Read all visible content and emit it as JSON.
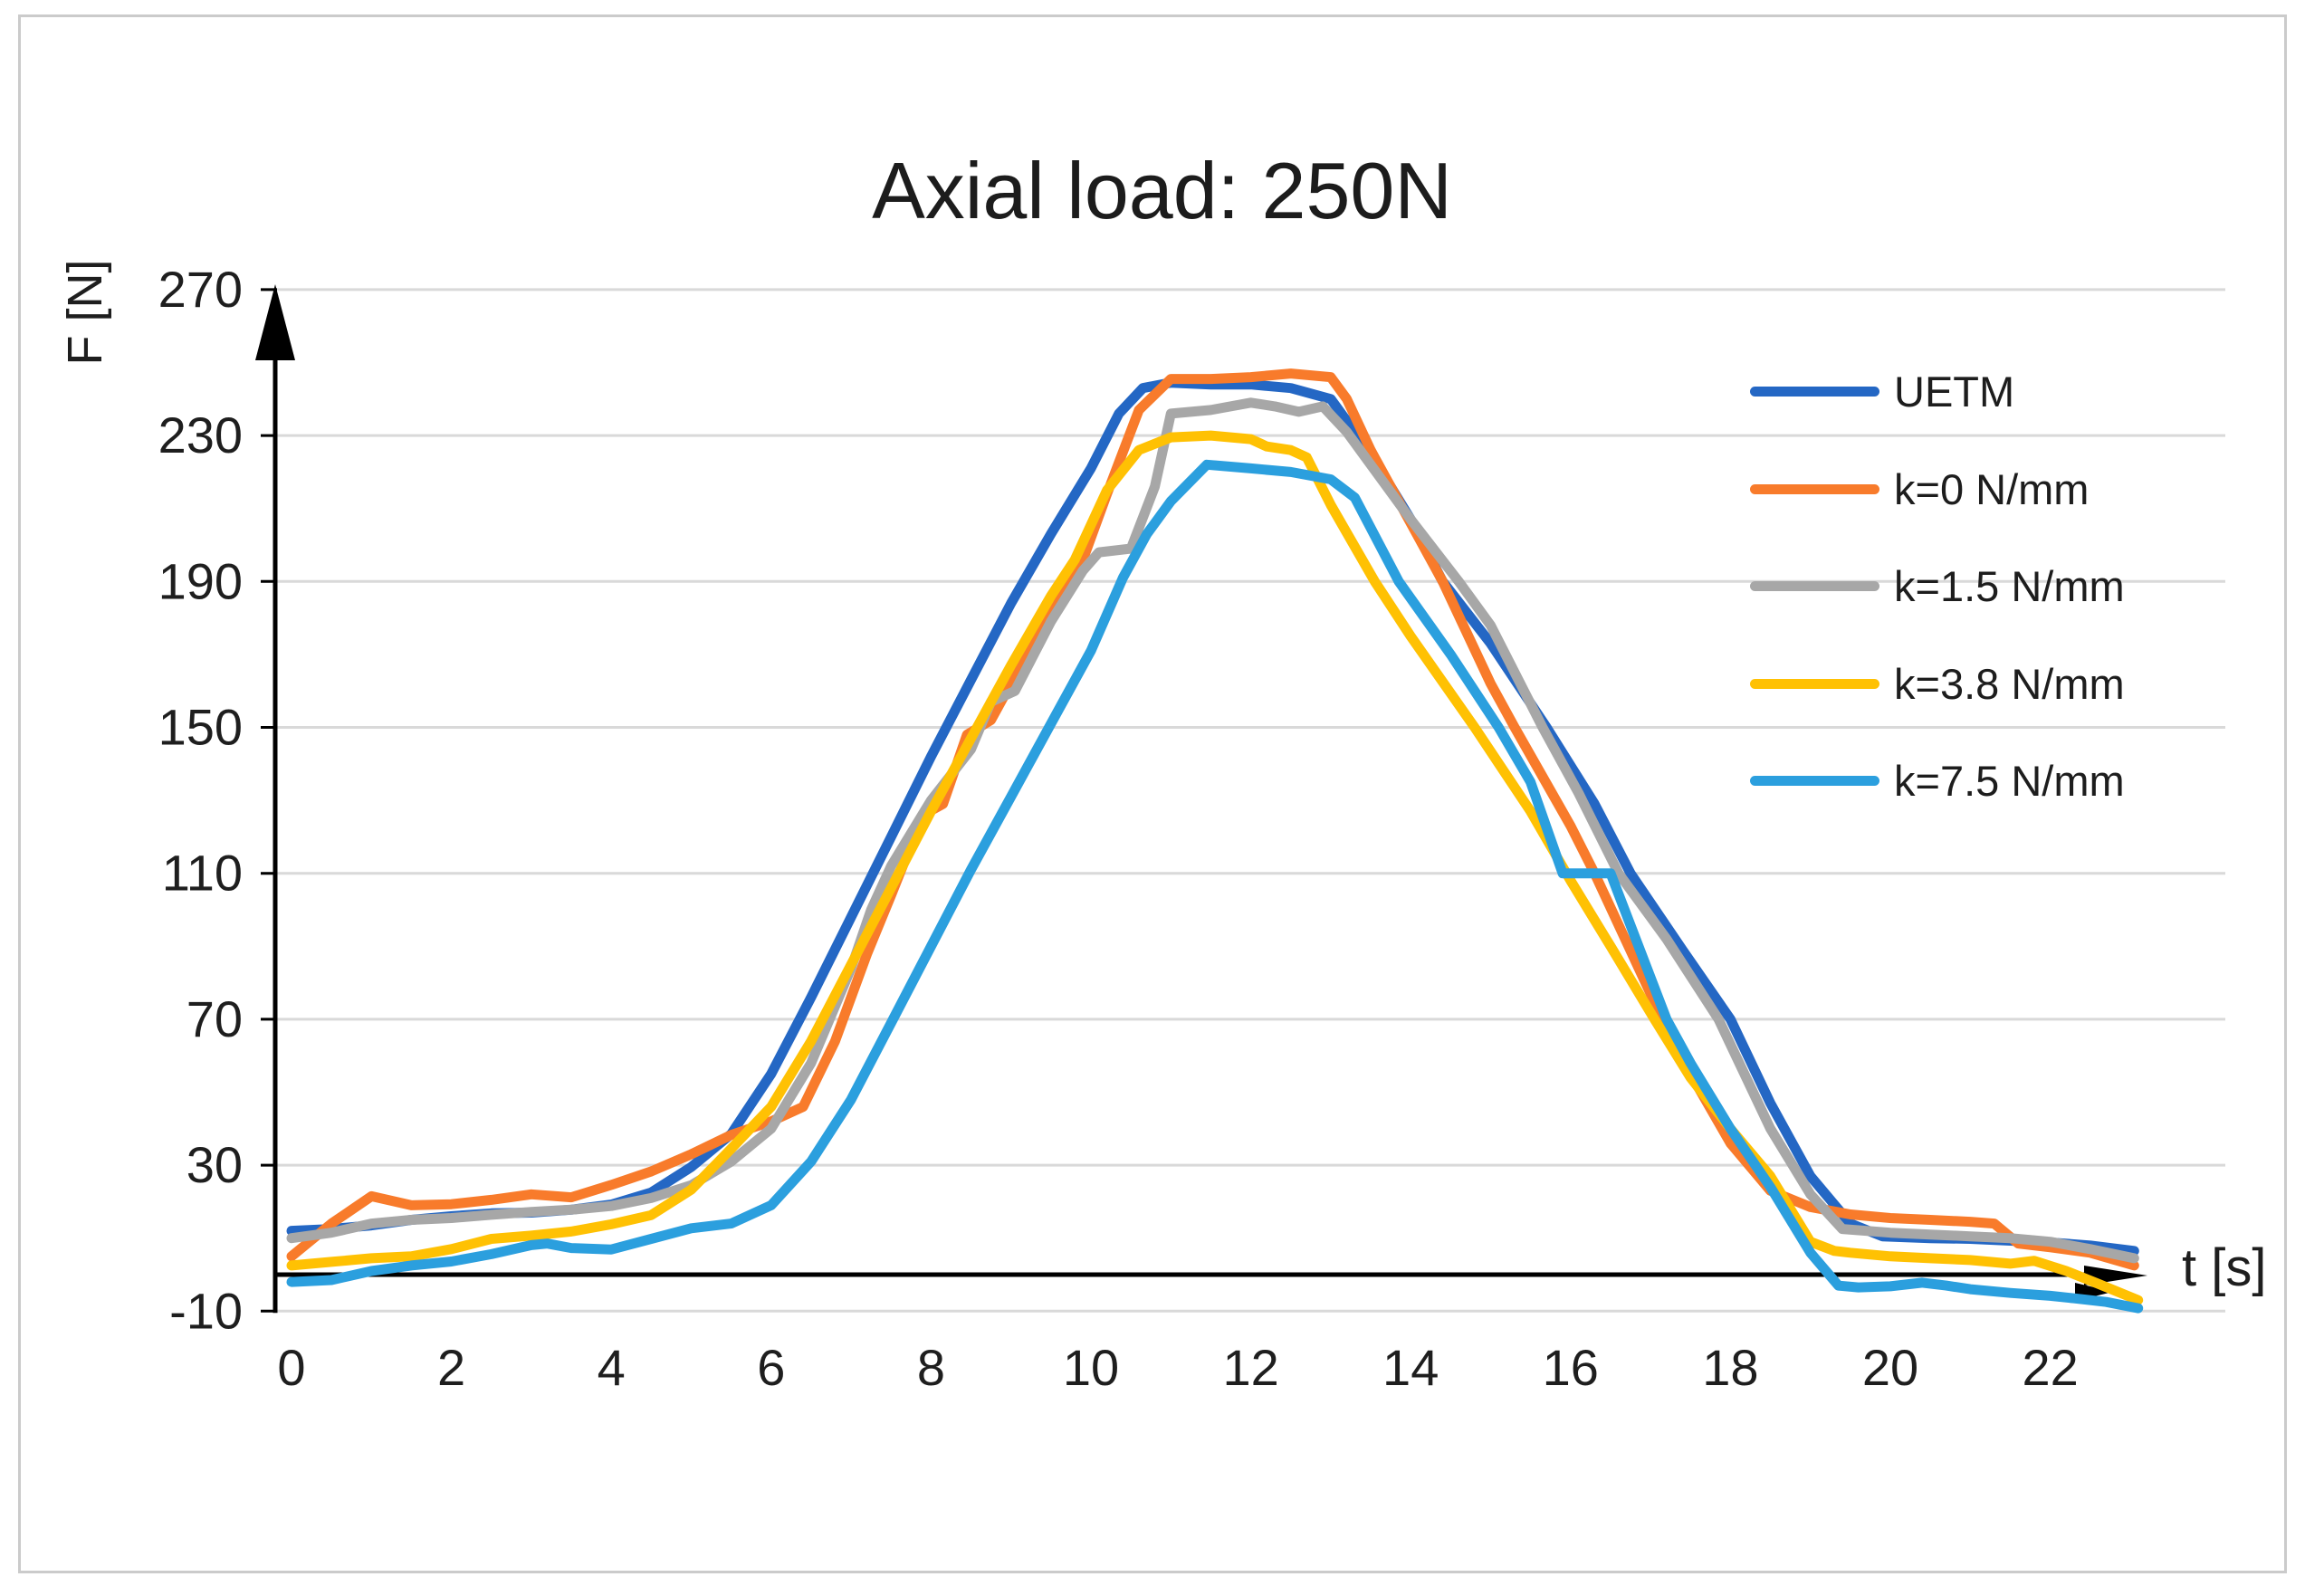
{
  "chart_data": {
    "type": "line",
    "title": "Axial load: 250N",
    "xlabel": "t [s]",
    "ylabel": "F [N]",
    "xlim": [
      0,
      23.5
    ],
    "ylim": [
      -10,
      270
    ],
    "x_ticks": [
      0,
      2,
      4,
      6,
      8,
      10,
      12,
      14,
      16,
      18,
      20,
      22
    ],
    "y_ticks": [
      270,
      230,
      190,
      150,
      110,
      70,
      30,
      -10
    ],
    "grid": "horizontal",
    "legend_position": "right",
    "series": [
      {
        "name": "UETM",
        "color": "#2467c4",
        "x": [
          0,
          0.5,
          1,
          1.5,
          2,
          2.5,
          3,
          3.5,
          4,
          4.5,
          5,
          5.5,
          6,
          6.5,
          7,
          7.5,
          8,
          8.5,
          9,
          9.5,
          10,
          10.35,
          10.65,
          11,
          11.5,
          12,
          12.5,
          13,
          13.5,
          14,
          14.4,
          15,
          15.7,
          16.3,
          16.75,
          17.4,
          18,
          18.5,
          19,
          19.5,
          19.9,
          20.5,
          21,
          21.5,
          22,
          22.5,
          23.05
        ],
        "y": [
          12,
          12.5,
          13.5,
          15,
          16,
          16.8,
          17,
          17.8,
          19.2,
          22.5,
          29.5,
          38.5,
          55,
          76,
          98,
          120,
          142,
          163,
          184,
          203,
          221,
          236,
          243,
          244.5,
          244,
          244,
          243,
          240,
          225,
          207,
          190,
          173,
          150,
          129,
          110,
          89,
          70,
          47,
          27,
          14,
          10.5,
          10,
          9.8,
          9.3,
          8.8,
          8,
          6.5
        ]
      },
      {
        "name": "k=0 N/mm",
        "color": "#f87b2b",
        "x": [
          0,
          0.5,
          1,
          1.5,
          2,
          2.5,
          3,
          3.5,
          4,
          4.5,
          5,
          5.5,
          6,
          6.4,
          6.8,
          7.2,
          7.5,
          7.9,
          8.15,
          8.45,
          8.75,
          9.1,
          9.5,
          9.85,
          10.2,
          10.6,
          11,
          11.5,
          12,
          12.5,
          13,
          13.2,
          13.5,
          14,
          14.4,
          15,
          15.3,
          16,
          16.3,
          17.15,
          17.5,
          18,
          18.5,
          19,
          19.5,
          20,
          20.5,
          21,
          21.3,
          21.6,
          22,
          22.5,
          23.05
        ],
        "y": [
          5,
          14,
          21.5,
          19,
          19.3,
          20.5,
          22,
          21.2,
          24.6,
          28.3,
          33,
          38.3,
          42,
          46,
          64,
          88,
          104,
          126,
          129,
          148,
          152,
          166,
          184,
          193,
          214,
          237,
          245.5,
          245.5,
          246,
          247,
          246,
          240,
          226,
          206,
          190,
          162,
          150,
          123,
          110,
          70,
          55,
          36,
          23,
          18.5,
          16.5,
          15.5,
          15,
          14.5,
          14,
          8.5,
          7.5,
          6,
          2.5
        ]
      },
      {
        "name": "k=1.5 N/mm",
        "color": "#a7a7a7",
        "x": [
          0,
          0.5,
          1,
          1.5,
          2,
          2.5,
          3,
          3.5,
          4,
          4.5,
          5,
          5.5,
          6,
          6.5,
          7,
          7.25,
          7.5,
          8,
          8.5,
          8.75,
          9.05,
          9.5,
          9.9,
          10.1,
          10.5,
          10.8,
          11,
          11.5,
          12,
          12.3,
          12.6,
          12.9,
          13.2,
          13.5,
          14,
          14.6,
          15,
          15.65,
          16.1,
          16.6,
          17.2,
          17.85,
          18.5,
          19,
          19.4,
          20,
          20.5,
          21,
          21.5,
          22,
          22.5,
          23.05
        ],
        "y": [
          10,
          11.5,
          14,
          15,
          15.5,
          16.4,
          17.2,
          17.8,
          18.8,
          21,
          24.5,
          31,
          40,
          58,
          84,
          100,
          112,
          130,
          144,
          157,
          160,
          179,
          193,
          198,
          199,
          216,
          236,
          237,
          239,
          238,
          236.5,
          238,
          231,
          222,
          207,
          190,
          178,
          150,
          132,
          110,
          92,
          70,
          40,
          22,
          12.5,
          11.5,
          11,
          10.5,
          10,
          9,
          7,
          4.5
        ]
      },
      {
        "name": "k=3.8 N/mm",
        "color": "#ffc103",
        "x": [
          0,
          0.5,
          1,
          1.5,
          2,
          2.5,
          3,
          3.5,
          4,
          4.5,
          5,
          5.5,
          6,
          6.5,
          7,
          7.5,
          8,
          8.5,
          9,
          9.5,
          9.8,
          10.2,
          10.6,
          11,
          11.5,
          12,
          12.2,
          12.5,
          12.7,
          13,
          13.55,
          14,
          14.8,
          15.5,
          16,
          16.5,
          17.05,
          17.5,
          18,
          18.5,
          19,
          19.3,
          19.5,
          20,
          20.5,
          21,
          21.5,
          21.8,
          22.2,
          22.6,
          23.1
        ],
        "y": [
          2.5,
          3.5,
          4.5,
          5,
          7,
          9.8,
          10.7,
          11.8,
          13.8,
          16.3,
          23.3,
          34.5,
          46,
          64,
          85,
          106,
          127,
          147,
          167,
          186,
          196,
          215,
          226,
          229.5,
          230,
          229,
          227,
          226,
          224,
          211,
          190,
          175,
          150,
          127,
          108,
          90,
          70,
          54,
          40,
          27,
          9,
          6.5,
          6,
          5,
          4.5,
          4,
          3,
          3.8,
          1,
          -2.5,
          -7
        ]
      },
      {
        "name": "k=7.5 N/mm",
        "color": "#2b9fde",
        "x": [
          0,
          0.5,
          1,
          1.5,
          2,
          2.5,
          3,
          3.2,
          3.5,
          4,
          4.5,
          5,
          5.5,
          6,
          6.5,
          7,
          7.5,
          8,
          8.5,
          9,
          9.5,
          10,
          10.4,
          10.7,
          11,
          11.45,
          12,
          12.5,
          13,
          13.3,
          13.85,
          14.5,
          15.1,
          15.5,
          15.9,
          16.5,
          17.2,
          17.5,
          18,
          18.5,
          19,
          19.35,
          19.6,
          20,
          20.4,
          20.7,
          21,
          21.5,
          22,
          22.3,
          22.7,
          23.1
        ],
        "y": [
          -2,
          -1.5,
          1,
          2.5,
          3.6,
          5.6,
          8.1,
          8.5,
          7.3,
          6.9,
          9.8,
          12.7,
          14,
          19,
          31,
          48,
          69,
          90,
          111,
          131,
          151,
          171,
          191,
          203,
          212,
          222,
          221,
          220,
          218,
          213,
          190,
          170,
          150,
          135,
          110,
          110,
          70,
          58,
          40,
          24,
          6,
          -3,
          -3.5,
          -3.2,
          -2.2,
          -3,
          -4,
          -5,
          -5.8,
          -6.5,
          -7.5,
          -9.2
        ]
      }
    ]
  },
  "colors": {
    "gridline": "#d9d9d9",
    "axis": "#000000",
    "tick_label": "#1e1e1e",
    "border": "#cbcbcb"
  }
}
